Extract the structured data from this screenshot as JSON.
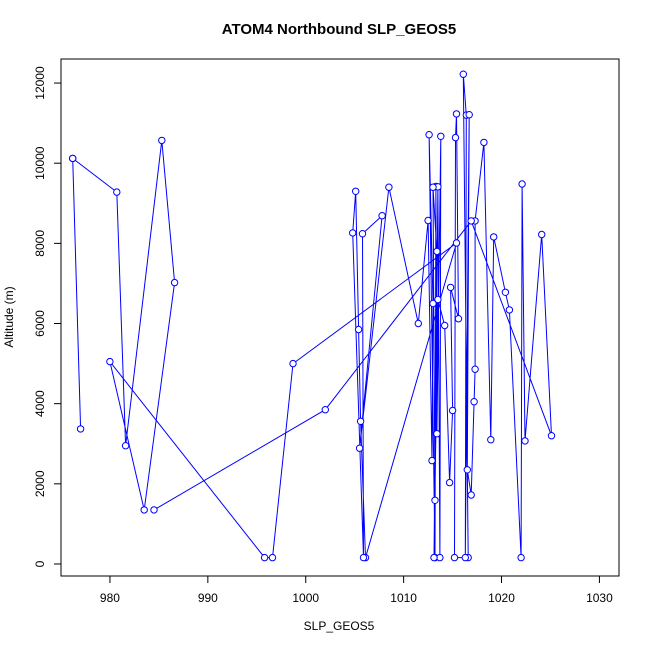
{
  "chart_data": {
    "type": "line",
    "markers": "open-circle",
    "title": "ATOM4 Northbound SLP_GEOS5",
    "xlabel": "SLP_GEOS5",
    "ylabel": "Altitude (m)",
    "xlim": [
      975,
      1032
    ],
    "ylim": [
      -300,
      12600
    ],
    "xticks": [
      980,
      990,
      1000,
      1010,
      1020,
      1030
    ],
    "yticks": [
      0,
      2000,
      4000,
      6000,
      8000,
      10000,
      12000
    ],
    "grid": false,
    "series": [
      {
        "color": "#0000ff",
        "points": [
          [
            976.2,
            10120
          ],
          [
            977.0,
            3370
          ],
          [
            976.2,
            10120
          ],
          [
            980.7,
            9280
          ],
          [
            981.6,
            2950
          ],
          [
            985.3,
            10570
          ],
          [
            986.6,
            7020
          ],
          [
            983.5,
            1350
          ],
          [
            980.0,
            5050
          ],
          [
            995.8,
            160
          ],
          [
            996.6,
            160
          ],
          [
            998.7,
            5000
          ],
          [
            1015.4,
            8010
          ],
          [
            1006.1,
            160
          ],
          [
            1005.6,
            3560
          ],
          [
            1005.4,
            5850
          ],
          [
            1005.1,
            9300
          ],
          [
            1004.8,
            8260
          ],
          [
            1005.9,
            160
          ],
          [
            1005.8,
            8240
          ],
          [
            1007.8,
            8690
          ],
          [
            1005.5,
            2890
          ],
          [
            1008.5,
            9400
          ],
          [
            1011.5,
            6000
          ],
          [
            1012.5,
            8570
          ],
          [
            1012.9,
            2580
          ],
          [
            1013.0,
            6500
          ],
          [
            1012.6,
            10710
          ],
          [
            1013.2,
            160
          ],
          [
            1013.3,
            9420
          ],
          [
            1013.4,
            3250
          ],
          [
            1013.8,
            10670
          ],
          [
            1013.7,
            160
          ],
          [
            1013.5,
            9410
          ],
          [
            1013.2,
            1590
          ],
          [
            1013.0,
            9400
          ],
          [
            1013.4,
            7800
          ],
          [
            1013.1,
            160
          ],
          [
            1013.5,
            6600
          ],
          [
            1014.2,
            5950
          ],
          [
            1014.7,
            2030
          ],
          [
            1015.0,
            3830
          ],
          [
            1014.8,
            6900
          ],
          [
            1015.6,
            6120
          ],
          [
            1015.4,
            11230
          ],
          [
            1015.3,
            10640
          ],
          [
            1015.2,
            160
          ],
          [
            1016.6,
            160
          ],
          [
            1016.1,
            12220
          ],
          [
            1016.4,
            11200
          ],
          [
            1016.3,
            160
          ],
          [
            1016.7,
            11210
          ],
          [
            1016.5,
            2350
          ],
          [
            1016.9,
            1720
          ],
          [
            1017.2,
            4050
          ],
          [
            1017.3,
            4860
          ],
          [
            1017.3,
            8560
          ],
          [
            1018.2,
            10520
          ],
          [
            1018.9,
            3100
          ],
          [
            1019.2,
            8160
          ],
          [
            1020.4,
            6780
          ],
          [
            1020.8,
            6340
          ],
          [
            1022.0,
            160
          ],
          [
            1022.1,
            9480
          ],
          [
            1022.4,
            3070
          ],
          [
            1024.1,
            8220
          ],
          [
            1025.1,
            3200
          ],
          [
            1016.9,
            8560
          ],
          [
            1002.0,
            3850
          ],
          [
            984.5,
            1350
          ]
        ]
      }
    ]
  }
}
